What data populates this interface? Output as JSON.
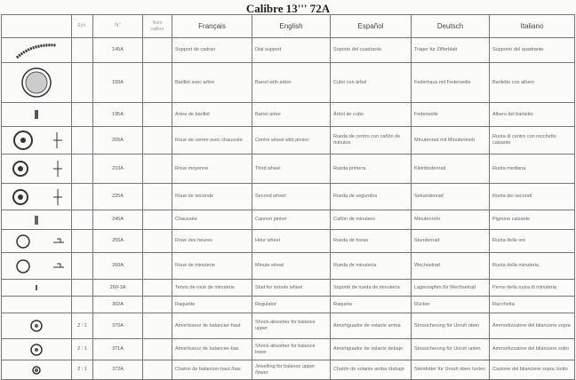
{
  "title": "Calibre 13''' 72A",
  "headers": {
    "image": "",
    "ech": "Ech.",
    "no": "N°",
    "nom": "Nom calibre",
    "fr": "Français",
    "en": "English",
    "es": "Español",
    "de": "Deutsch",
    "it": "Italiano"
  },
  "rows": [
    {
      "icon": "dial-support-icon",
      "ech": "",
      "no": "145A",
      "fr": "Support de cadran",
      "en": "Dial support",
      "es": "Soporte del cuadrante",
      "de": "Träger für Zifferblatt",
      "it": "Supporto del quadrante"
    },
    {
      "icon": "barrel-icon",
      "ech": "",
      "no": "150A",
      "fr": "Barillet avec arbre",
      "en": "Barrel with arbor",
      "es": "Cubo con árbol",
      "de": "Federhaus mit Federwelle",
      "it": "Bariletto con albero"
    },
    {
      "icon": "barrel-arbor-icon",
      "ech": "",
      "no": "195A",
      "fr": "Arbre de barillet",
      "en": "Barrel arbor",
      "es": "Árbol de cubo",
      "de": "Federwelle",
      "it": "Albero del bariletto"
    },
    {
      "icon": "centre-wheel-icon",
      "ech": "",
      "no": "205A",
      "fr": "Roue de centre avec chaussée",
      "en": "Centre wheel with pinion",
      "es": "Rueda de centro con cañón de minutos",
      "de": "Minutenrad mit Minutentrieb",
      "it": "Ruota di centro con rocchetto calzante"
    },
    {
      "icon": "third-wheel-icon",
      "ech": "",
      "no": "210A",
      "fr": "Roue moyenne",
      "en": "Third wheel",
      "es": "Rueda primera",
      "de": "Kleinbodenrad",
      "it": "Ruota mediana"
    },
    {
      "icon": "second-wheel-icon",
      "ech": "",
      "no": "225A",
      "fr": "Roue de seconde",
      "en": "Second wheel",
      "es": "Rueda de segundos",
      "de": "Sekundenrad",
      "it": "Ruota dei secondi"
    },
    {
      "icon": "cannon-pinion-icon",
      "ech": "",
      "no": "245A",
      "fr": "Chaussée",
      "en": "Cannon pinion",
      "es": "Cañón de minutero",
      "de": "Minutenrohr",
      "it": "Pignone calzante"
    },
    {
      "icon": "hour-wheel-icon",
      "ech": "",
      "no": "255A",
      "fr": "Roue des heures",
      "en": "Hour wheel",
      "es": "Rueda de horas",
      "de": "Stundenrad",
      "it": "Ruota delle ore"
    },
    {
      "icon": "minute-wheel-icon",
      "ech": "",
      "no": "260A",
      "fr": "Roue de minuterie",
      "en": "Minute wheel",
      "es": "Rueda de minutería",
      "de": "Wechselrad",
      "it": "Ruota della minuteria"
    },
    {
      "icon": "stud-icon",
      "ech": "",
      "no": "260-1A",
      "fr": "Tenon de roue de minuterie",
      "en": "Stud for minute wheel",
      "es": "Soporte de rueda de minutería",
      "de": "Lagerzapfen für Wechselrad",
      "it": "Perno della ruota di minuteria"
    },
    {
      "icon": "regulator-icon",
      "ech": "",
      "no": "302A",
      "fr": "Raquette",
      "en": "Regulator",
      "es": "Raqueta",
      "de": "Rücker",
      "it": "Racchetta"
    },
    {
      "icon": "shock-absorber-upper-icon",
      "ech": "2 : 1",
      "no": "370A",
      "fr": "Amortisseur de balancier-haut",
      "en": "Shock-absorber for balance upper",
      "es": "Amortiguador de volante arriba",
      "de": "Stossicherung für Unruh oben",
      "it": "Ammortizzatore del bilanciere sopra"
    },
    {
      "icon": "shock-absorber-lower-icon",
      "ech": "2 : 1",
      "no": "371A",
      "fr": "Amortisseur de balancier-bas",
      "en": "Shock-absorber for balance lower",
      "es": "Amortiguador de volante debajo",
      "de": "Stossicherung für Unruh unten",
      "it": "Ammortizzatore del bilanciere sotto"
    },
    {
      "icon": "jewelling-icon",
      "ech": "2 : 1",
      "no": "372A",
      "fr": "Chaton de balancier-haut /bas",
      "en": "Jewelling for balance upper /lower",
      "es": "Chatón de volante arriba /debajo",
      "de": "Steinfutter für Unruh oben /unten",
      "it": "Castone del bilanciere sopra /sotto"
    }
  ]
}
